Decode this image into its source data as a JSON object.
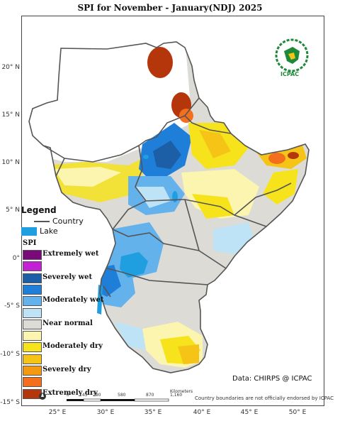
{
  "title": "SPI  for   November - January(NDJ) 2025",
  "map": {
    "lat_ticks": [
      "20° N",
      "15° N",
      "10° N",
      "5° N",
      "0°",
      "-5° S",
      "-10° S",
      "-15° S"
    ],
    "lon_ticks": [
      "25° E",
      "30° E",
      "35° E",
      "40° E",
      "45° E",
      "50° E"
    ]
  },
  "legend": {
    "title": "Legend",
    "country_label": "Country",
    "lake_label": "Lake",
    "spi_label": "SPI",
    "classes": [
      {
        "label": "Extremely wet",
        "color": "#7a0a7a"
      },
      {
        "label": "",
        "color": "#c21fd6"
      },
      {
        "label": "Severely wet",
        "color": "#1c5fa6"
      },
      {
        "label": "",
        "color": "#1f7fd8"
      },
      {
        "label": "Moderately wet",
        "color": "#63b2ec"
      },
      {
        "label": "",
        "color": "#bfe3f6"
      },
      {
        "label": "Near normal",
        "color": "#dcdbd6"
      },
      {
        "label": "",
        "color": "#fbf5b0"
      },
      {
        "label": "Moderately dry",
        "color": "#f6e31c"
      },
      {
        "label": "",
        "color": "#f5c417"
      },
      {
        "label": "Severely dry",
        "color": "#f39a12"
      },
      {
        "label": "",
        "color": "#f36e1d"
      },
      {
        "label": "Extremely dry",
        "color": "#b6360c"
      }
    ]
  },
  "logo": {
    "org": "IGAD",
    "center": "ICPAC"
  },
  "credit": "Data: CHIRPS @ ICPAC",
  "scale": {
    "ticks": [
      "0",
      "145",
      "290",
      "580",
      "870",
      "1,160"
    ],
    "unit": "Kilometers"
  },
  "disclaimer": "Country boundaries are not officially endorsed by ICPAC"
}
